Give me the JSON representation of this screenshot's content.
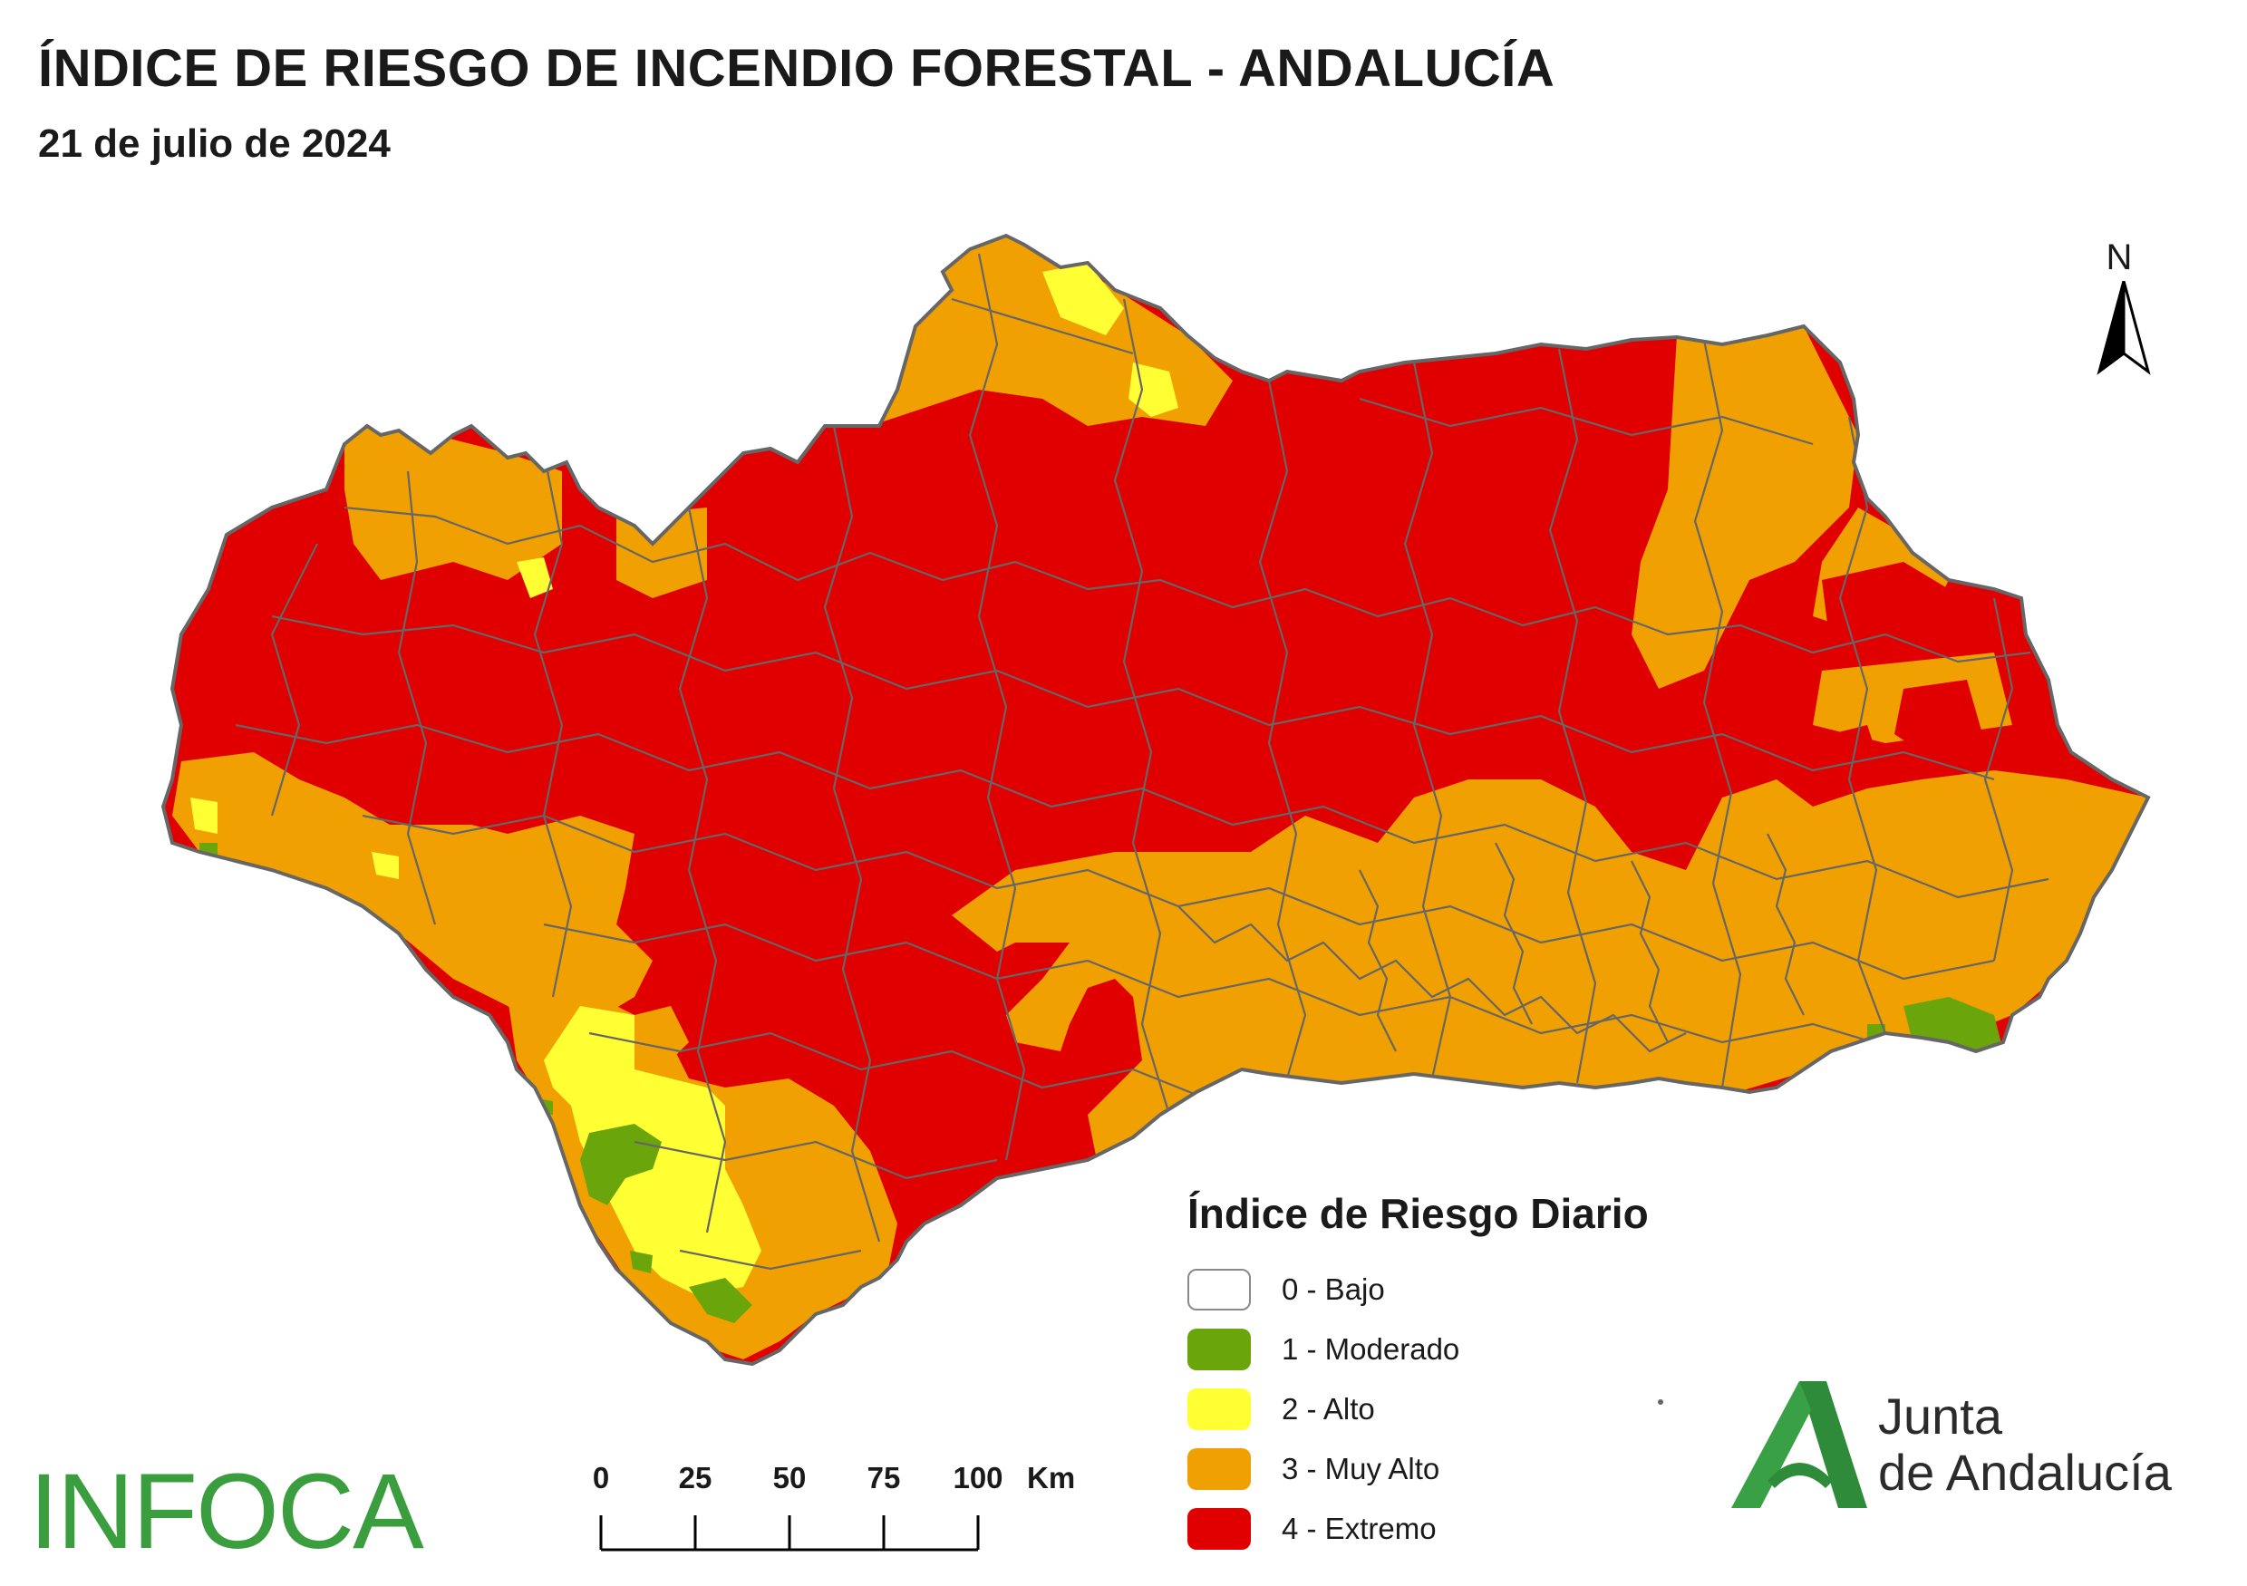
{
  "title": "ÍNDICE DE RIESGO DE INCENDIO FORESTAL - ANDALUCÍA",
  "date": "21 de julio de 2024",
  "north_label": "N",
  "legend": {
    "title": "Índice de Riesgo Diario",
    "items": [
      {
        "label": "0 - Bajo",
        "color": "#ffffff",
        "level": 0
      },
      {
        "label": "1 - Moderado",
        "color": "#6aa60b",
        "level": 1
      },
      {
        "label": "2 - Alto",
        "color": "#ffff33",
        "level": 2
      },
      {
        "label": "3 - Muy Alto",
        "color": "#f0a000",
        "level": 3
      },
      {
        "label": "4 - Extremo",
        "color": "#e00000",
        "level": 4
      }
    ]
  },
  "scale": {
    "ticks": [
      "0",
      "25",
      "50",
      "75",
      "100"
    ],
    "unit": "Km"
  },
  "branding": {
    "infoca": "INFOCA",
    "junta_line1": "Junta",
    "junta_line2": "de Andalucía",
    "infoca_color": "#3a9d3e",
    "junta_green": "#2e8b3a"
  }
}
